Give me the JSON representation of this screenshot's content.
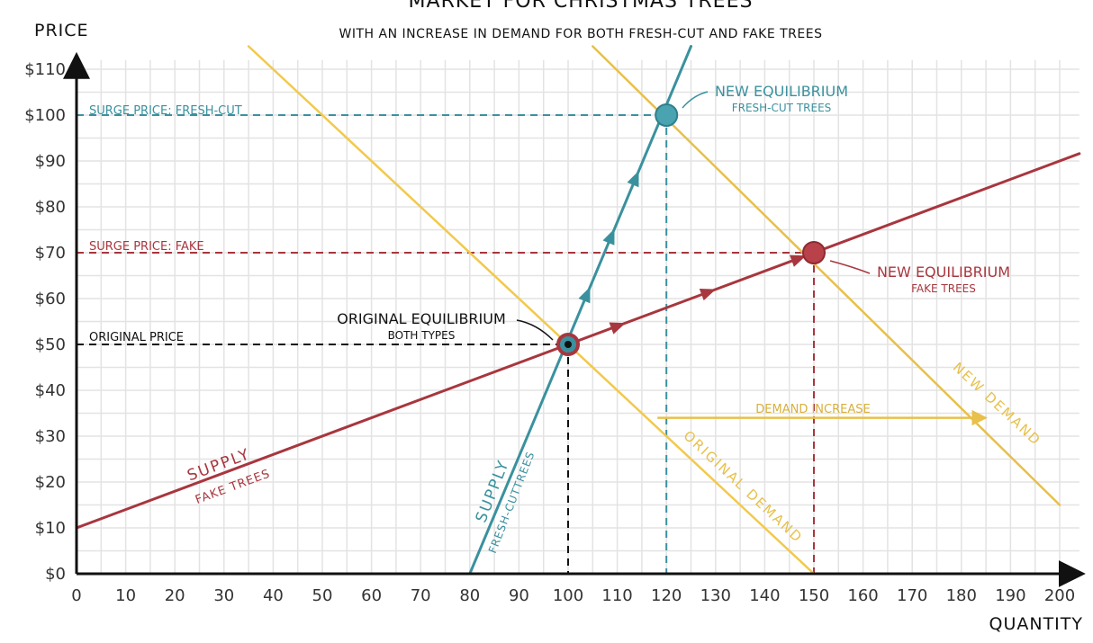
{
  "chart_data": {
    "type": "line",
    "title": "MARKET FOR CHRISTMAS TREES",
    "subtitle": "WITH AN INCREASE IN DEMAND FOR BOTH FRESH-CUT AND FAKE TREES",
    "xlabel": "QUANTITY",
    "ylabel": "PRICE",
    "xlim": [
      0,
      204
    ],
    "ylim": [
      0,
      112
    ],
    "grid": true,
    "x_ticks": [
      0,
      10,
      20,
      30,
      40,
      50,
      60,
      70,
      80,
      90,
      100,
      110,
      120,
      130,
      140,
      150,
      160,
      170,
      180,
      190,
      200
    ],
    "x_tick_labels": [
      "0",
      "10",
      "20",
      "30",
      "40",
      "50",
      "60",
      "70",
      "80",
      "90",
      "100",
      "110",
      "120",
      "130",
      "140",
      "150",
      "160",
      "170",
      "180",
      "190",
      "200"
    ],
    "y_ticks": [
      0,
      10,
      20,
      30,
      40,
      50,
      60,
      70,
      80,
      90,
      100,
      110
    ],
    "y_tick_labels": [
      "$0",
      "$10",
      "$20",
      "$30",
      "$40",
      "$50",
      "$60",
      "$70",
      "$80",
      "$90",
      "$100",
      "$110"
    ],
    "colors": {
      "demand": "#f2c94c",
      "new_demand": "#e8c04a",
      "supply_fake": "#a8363e",
      "supply_fresh": "#3a919e",
      "axis": "#111111",
      "grid": "#e3e3e3",
      "original": "#111111"
    },
    "series": [
      {
        "name": "SUPPLY FAKE TREES",
        "key": "supply_fake",
        "x": [
          0,
          204
        ],
        "y": [
          10,
          91.6
        ]
      },
      {
        "name": "SUPPLY FRESH-CUT TREES",
        "key": "supply_fresh",
        "x": [
          80,
          125
        ],
        "y": [
          0,
          115
        ]
      },
      {
        "name": "ORIGINAL DEMAND",
        "key": "demand",
        "x": [
          35,
          150
        ],
        "y": [
          115,
          0
        ]
      },
      {
        "name": "NEW DEMAND",
        "key": "new_demand",
        "x": [
          105,
          200
        ],
        "y": [
          115,
          15
        ]
      }
    ],
    "points": [
      {
        "key": "original",
        "x": 100,
        "y": 50
      },
      {
        "key": "new_fresh",
        "x": 120,
        "y": 100
      },
      {
        "key": "new_fake",
        "x": 150,
        "y": 70
      }
    ],
    "reference_lines": [
      {
        "key": "surge_fresh",
        "label": "SURGE PRICE: FRESH-CUT",
        "x": 120,
        "y": 100
      },
      {
        "key": "surge_fake",
        "label": "SURGE PRICE: FAKE",
        "x": 150,
        "y": 70
      },
      {
        "key": "original_price",
        "label": "ORIGINAL PRICE",
        "x": 100,
        "y": 50
      }
    ],
    "annotations": {
      "original_eq_title": "ORIGINAL EQUILIBRIUM",
      "original_eq_sub": "BOTH TYPES",
      "new_eq_fresh_title": "NEW EQUILIBRIUM",
      "new_eq_fresh_sub": "FRESH-CUT TREES",
      "new_eq_fake_title": "NEW EQUILIBRIUM",
      "new_eq_fake_sub": "FAKE TREES",
      "demand_increase": "DEMAND INCREASE",
      "supply_fake_line1": "SUPPLY",
      "supply_fake_line2": "FAKE TREES",
      "supply_fresh_line1": "SUPPLY",
      "supply_fresh_line2": "FRESH-CUTTREES",
      "original_demand": "ORIGINAL DEMAND",
      "new_demand": "NEW DEMAND"
    },
    "demand_increase_arrow": {
      "from": [
        120,
        34
      ],
      "to": [
        185,
        34
      ]
    }
  }
}
